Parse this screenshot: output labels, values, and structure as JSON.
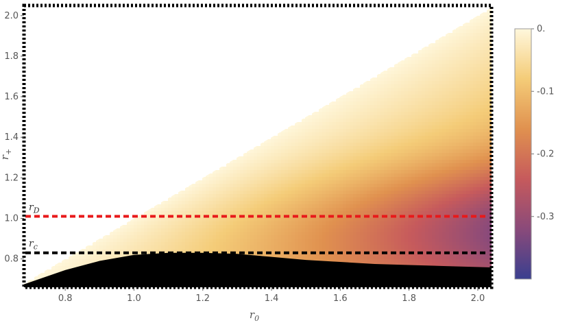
{
  "chart_data": {
    "type": "heatmap",
    "title": "",
    "xlabel": "r",
    "xlabel_sub": "0",
    "ylabel": "r",
    "ylabel_sub": "+",
    "xlim": [
      0.68,
      2.04
    ],
    "ylim": [
      0.66,
      2.05
    ],
    "x_ticks": [
      {
        "v": 0.8,
        "label": "0.8"
      },
      {
        "v": 1.0,
        "label": "1.0"
      },
      {
        "v": 1.2,
        "label": "1.2"
      },
      {
        "v": 1.4,
        "label": "1.4"
      },
      {
        "v": 1.6,
        "label": "1.6"
      },
      {
        "v": 1.8,
        "label": "1.8"
      },
      {
        "v": 2.0,
        "label": "2.0"
      }
    ],
    "y_ticks": [
      {
        "v": 0.8,
        "label": "0.8"
      },
      {
        "v": 1.0,
        "label": "1.0"
      },
      {
        "v": 1.2,
        "label": "1.2"
      },
      {
        "v": 1.4,
        "label": "1.4"
      },
      {
        "v": 1.6,
        "label": "1.6"
      },
      {
        "v": 1.8,
        "label": "1.8"
      },
      {
        "v": 2.0,
        "label": "2.0"
      }
    ],
    "region": "defined for r+ <= r0 (upper-left triangle blank)",
    "horizontal_lines": [
      {
        "name": "r",
        "sub": "D",
        "y": 1.01,
        "color": "#e8191a"
      },
      {
        "name": "r",
        "sub": "c",
        "y": 0.83,
        "color": "#000000"
      }
    ],
    "excluded_region_boundary": {
      "x": [
        0.68,
        0.8,
        0.9,
        1.0,
        1.1,
        1.2,
        1.3,
        1.4,
        1.5,
        1.6,
        1.7,
        1.8,
        1.9,
        2.04
      ],
      "y": [
        0.675,
        0.745,
        0.79,
        0.82,
        0.83,
        0.83,
        0.825,
        0.81,
        0.795,
        0.785,
        0.775,
        0.77,
        0.765,
        0.758
      ],
      "fill": "#000000"
    },
    "colorbar": {
      "min": -0.4,
      "max": 0.0,
      "ticks": [
        {
          "v": 0.0,
          "label": "0."
        },
        {
          "v": -0.1,
          "label": "-0.1"
        },
        {
          "v": -0.2,
          "label": "-0.2"
        },
        {
          "v": -0.3,
          "label": "-0.3"
        }
      ],
      "colors": [
        "#3a3f8f",
        "#8a4a7a",
        "#c65a5c",
        "#e0914f",
        "#f4cc78",
        "#fff7dc"
      ]
    },
    "frame_style": "dashed black border"
  }
}
